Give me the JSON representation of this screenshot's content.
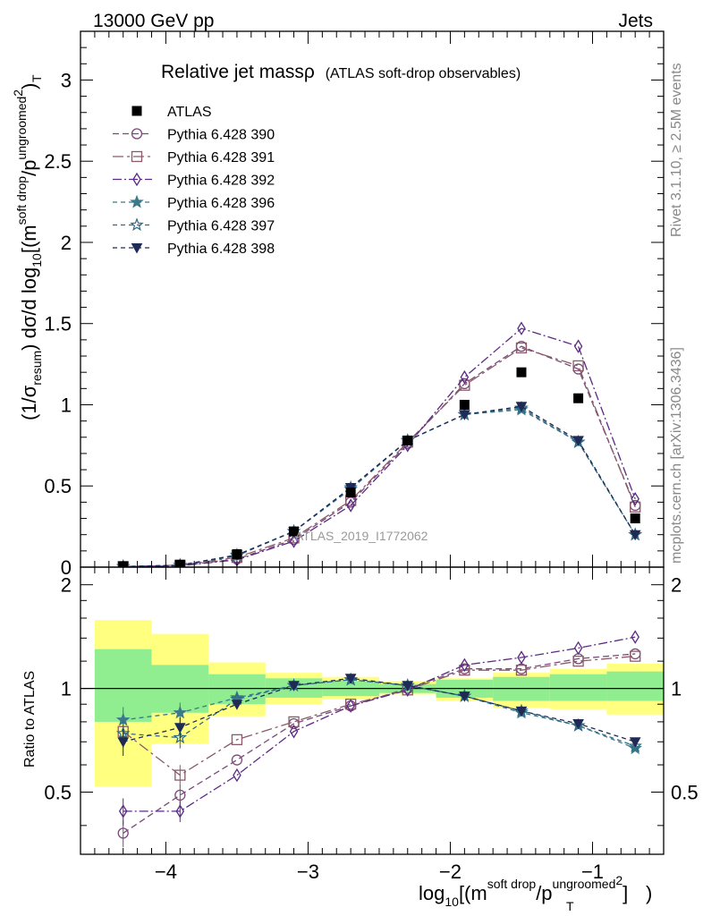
{
  "header": {
    "left": "13000 GeV pp",
    "right": "Jets"
  },
  "side_text": {
    "rivet": "Rivet 3.1.10, ≥ 2.5M events",
    "mcplots": "mcplots.cern.ch [arXiv:1306.3436]"
  },
  "watermark": "ATLAS_2019_I1772062",
  "chart_data": {
    "type": "line",
    "title": "Relative jet massρ",
    "subtitle": "(ATLAS soft-drop observables)",
    "xlabel": "log10[(m^soft drop/pT^ungroomed)^2]",
    "ylabel": "(1/σ_resum) dσ/d log10[(m^soft drop/pT^ungroomed)^2]",
    "ratio_ylabel": "Ratio to ATLAS",
    "xlim": [
      -4.6,
      -0.5
    ],
    "ylim": [
      0,
      3.3
    ],
    "ratio_ylim": [
      0.33,
      2.25
    ],
    "x_ticks": [
      -4,
      -3,
      -2,
      -1
    ],
    "x_tick_labels": [
      "−4",
      "−3",
      "−2",
      "−1"
    ],
    "y_ticks": [
      0,
      0.5,
      1,
      1.5,
      2,
      2.5,
      3
    ],
    "y_tick_labels": [
      "0",
      "0.5",
      "1",
      "1.5",
      "2",
      "2.5",
      "3"
    ],
    "ratio_y_ticks": [
      0.5,
      1,
      2
    ],
    "ratio_y_tick_labels": [
      "0.5",
      "1",
      "2"
    ],
    "legend_position": "top-left",
    "x": [
      -4.3,
      -3.9,
      -3.5,
      -3.1,
      -2.7,
      -2.3,
      -1.9,
      -1.5,
      -1.1,
      -0.7
    ],
    "bin_edges": [
      -4.5,
      -4.1,
      -3.7,
      -3.3,
      -2.9,
      -2.5,
      -2.1,
      -1.7,
      -1.3,
      -0.9,
      -0.5
    ],
    "data": {
      "name": "ATLAS",
      "values": [
        0.005,
        0.015,
        0.08,
        0.22,
        0.46,
        0.78,
        1.0,
        1.2,
        1.04,
        0.3
      ]
    },
    "ratio_band_inner": [
      [
        0.8,
        1.3
      ],
      [
        0.85,
        1.17
      ],
      [
        0.9,
        1.1
      ],
      [
        0.94,
        1.07
      ],
      [
        0.95,
        1.05
      ],
      [
        0.97,
        1.03
      ],
      [
        0.94,
        1.06
      ],
      [
        0.92,
        1.08
      ],
      [
        0.92,
        1.1
      ],
      [
        0.92,
        1.12
      ]
    ],
    "ratio_band_outer": [
      [
        0.52,
        1.58
      ],
      [
        0.69,
        1.44
      ],
      [
        0.83,
        1.19
      ],
      [
        0.9,
        1.11
      ],
      [
        0.93,
        1.08
      ],
      [
        0.96,
        1.05
      ],
      [
        0.92,
        1.07
      ],
      [
        0.88,
        1.11
      ],
      [
        0.87,
        1.14
      ],
      [
        0.84,
        1.18
      ]
    ],
    "series": [
      {
        "name": "Pythia 6.428 390",
        "color": "#7a4a78",
        "marker": "open-circle",
        "dash": "7,4",
        "values": [
          0.003,
          0.01,
          0.05,
          0.17,
          0.4,
          0.76,
          1.13,
          1.36,
          1.22,
          0.38
        ],
        "ratio": [
          0.38,
          0.49,
          0.62,
          0.79,
          0.89,
          1.0,
          1.14,
          1.14,
          1.22,
          1.26
        ]
      },
      {
        "name": "Pythia 6.428 391",
        "color": "#8a5a6a",
        "marker": "open-square",
        "dash": "12,4,3,4",
        "values": [
          0.004,
          0.012,
          0.06,
          0.18,
          0.41,
          0.77,
          1.12,
          1.35,
          1.24,
          0.37
        ],
        "ratio": [
          0.75,
          0.56,
          0.71,
          0.8,
          0.9,
          0.99,
          1.13,
          1.13,
          1.2,
          1.24
        ]
      },
      {
        "name": "Pythia 6.428 392",
        "color": "#5b2a86",
        "marker": "open-diamond",
        "dash": "10,3,2,3",
        "values": [
          0.002,
          0.008,
          0.045,
          0.16,
          0.38,
          0.75,
          1.17,
          1.47,
          1.36,
          0.42
        ],
        "ratio": [
          0.44,
          0.44,
          0.56,
          0.75,
          0.89,
          0.99,
          1.17,
          1.23,
          1.31,
          1.41
        ]
      },
      {
        "name": "Pythia 6.428 396",
        "color": "#3a7a8a",
        "marker": "filled-star",
        "dash": "5,4",
        "values": [
          0.004,
          0.013,
          0.075,
          0.22,
          0.49,
          0.78,
          0.94,
          0.97,
          0.77,
          0.2
        ],
        "ratio": [
          0.81,
          0.85,
          0.94,
          1.02,
          1.06,
          1.02,
          0.95,
          0.85,
          0.78,
          0.67
        ]
      },
      {
        "name": "Pythia 6.428 397",
        "color": "#2f6a88",
        "marker": "open-star",
        "dash": "5,4",
        "values": [
          0.004,
          0.011,
          0.07,
          0.22,
          0.48,
          0.78,
          0.94,
          0.98,
          0.77,
          0.2
        ],
        "ratio": [
          0.74,
          0.72,
          0.93,
          1.02,
          1.06,
          1.02,
          0.95,
          0.86,
          0.78,
          0.68
        ]
      },
      {
        "name": "Pythia 6.428 398",
        "color": "#1f2a55",
        "marker": "filled-triangle-down",
        "dash": "5,4",
        "values": [
          0.003,
          0.011,
          0.075,
          0.22,
          0.49,
          0.78,
          0.94,
          0.99,
          0.78,
          0.2
        ],
        "ratio": [
          0.7,
          0.77,
          0.9,
          1.02,
          1.07,
          1.02,
          0.95,
          0.86,
          0.79,
          0.7
        ]
      }
    ]
  }
}
